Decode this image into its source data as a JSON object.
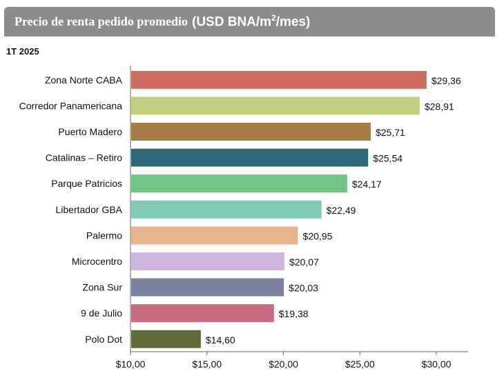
{
  "header": {
    "title": "Precio de renta pedido promedio",
    "unit_prefix": "(USD BNA/m",
    "unit_sup": "2",
    "unit_suffix": "/mes)"
  },
  "period": "1T 2025",
  "chart_data": {
    "type": "bar",
    "orientation": "horizontal",
    "categories": [
      "Zona Norte CABA",
      "Corredor Panamericana",
      "Puerto Madero",
      "Catalinas – Retiro",
      "Parque Patricios",
      "Libertador GBA",
      "Palermo",
      "Microcentro",
      "Zona Sur",
      "9 de Julio",
      "Polo Dot"
    ],
    "values": [
      29.36,
      28.91,
      25.71,
      25.54,
      24.17,
      22.49,
      20.95,
      20.07,
      20.03,
      19.38,
      14.6
    ],
    "value_labels": [
      "$29,36",
      "$28,91",
      "$25,71",
      "$25,54",
      "$24,17",
      "$22,49",
      "$20,95",
      "$20,07",
      "$20,03",
      "$19,38",
      "$14,60"
    ],
    "colors": [
      "#cd6b63",
      "#c2cf7c",
      "#a57c45",
      "#2d6779",
      "#73c286",
      "#7ecab7",
      "#e6b48b",
      "#cfb4e0",
      "#7b819f",
      "#c96a82",
      "#606b3a"
    ],
    "xlim": [
      10,
      30
    ],
    "x_ticks": [
      10,
      15,
      20,
      25,
      30
    ],
    "x_tick_labels": [
      "$10,00",
      "$15,00",
      "$20,00",
      "$25,00",
      "$30,00"
    ],
    "grid": false,
    "legend": "none"
  }
}
